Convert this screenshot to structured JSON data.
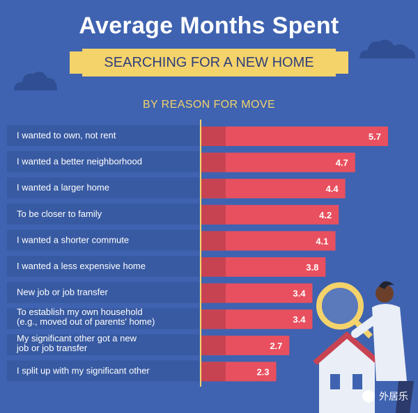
{
  "title": "Average Months Spent",
  "banner": "SEARCHING FOR A NEW HOME",
  "subtitle": "BY REASON FOR MOVE",
  "watermark": "外居乐",
  "colors": {
    "background": "#3f63b0",
    "label_row": "#385aa2",
    "bar": "#e8505f",
    "bar_dark": "#c84352",
    "banner": "#f4d36b",
    "axis_line": "#f4d36b"
  },
  "chart_data": {
    "type": "bar",
    "orientation": "horizontal",
    "categories": [
      [
        "I wanted to own, not rent"
      ],
      [
        "I wanted a better neighborhood"
      ],
      [
        "I wanted a larger home"
      ],
      [
        "To be closer to family"
      ],
      [
        "I wanted a shorter commute"
      ],
      [
        "I wanted a less expensive home"
      ],
      [
        "New job or job transfer"
      ],
      [
        "To establish my own household",
        "(e.g., moved out of parents' home)"
      ],
      [
        "My significant other got a new",
        "job or job transfer"
      ],
      [
        "I split up with my significant other"
      ]
    ],
    "values": [
      5.7,
      4.7,
      4.4,
      4.2,
      4.1,
      3.8,
      3.4,
      3.4,
      2.7,
      2.3
    ],
    "value_labels": [
      "5.7",
      "4.7",
      "4.4",
      "4.2",
      "4.1",
      "3.8",
      "3.4",
      "3.4",
      "2.7",
      "2.3"
    ],
    "xlim": [
      0,
      6.0
    ],
    "grid": false,
    "legend": "none"
  }
}
